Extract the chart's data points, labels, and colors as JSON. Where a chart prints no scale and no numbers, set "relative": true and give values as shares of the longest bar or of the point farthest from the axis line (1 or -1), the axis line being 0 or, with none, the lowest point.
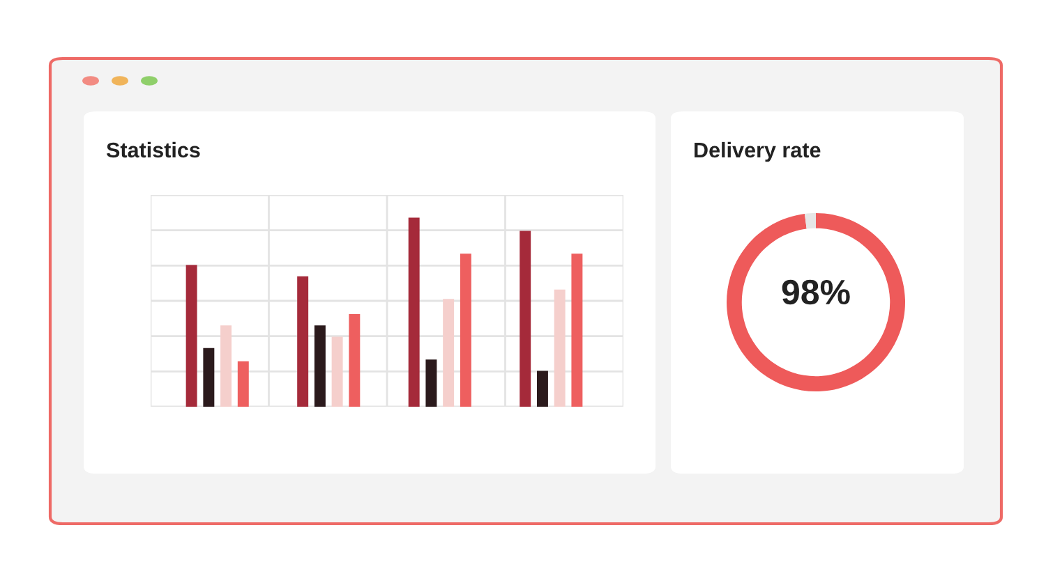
{
  "chart_data": [
    {
      "type": "bar",
      "title": "Statistics",
      "relative": true,
      "grid": true,
      "categories": [
        null,
        null,
        null,
        null
      ],
      "series": [
        {
          "color": "#a52a3a",
          "values": [
            0.75,
            0.69,
            1.0,
            0.93
          ]
        },
        {
          "color": "#2b1a1c",
          "values": [
            0.31,
            0.43,
            0.25,
            0.19
          ]
        },
        {
          "color": "#f5cfcc",
          "values": [
            0.43,
            0.37,
            0.57,
            0.62
          ]
        },
        {
          "color": "#ee5f5f",
          "values": [
            0.24,
            0.49,
            0.81,
            0.81
          ]
        }
      ]
    },
    {
      "type": "donut",
      "title": "Delivery rate",
      "categories": [
        null,
        null
      ],
      "values": [
        98,
        2
      ],
      "colors": [
        "#ee5a5a",
        "#e6e6e6"
      ],
      "annotations": [
        "98%"
      ]
    }
  ]
}
